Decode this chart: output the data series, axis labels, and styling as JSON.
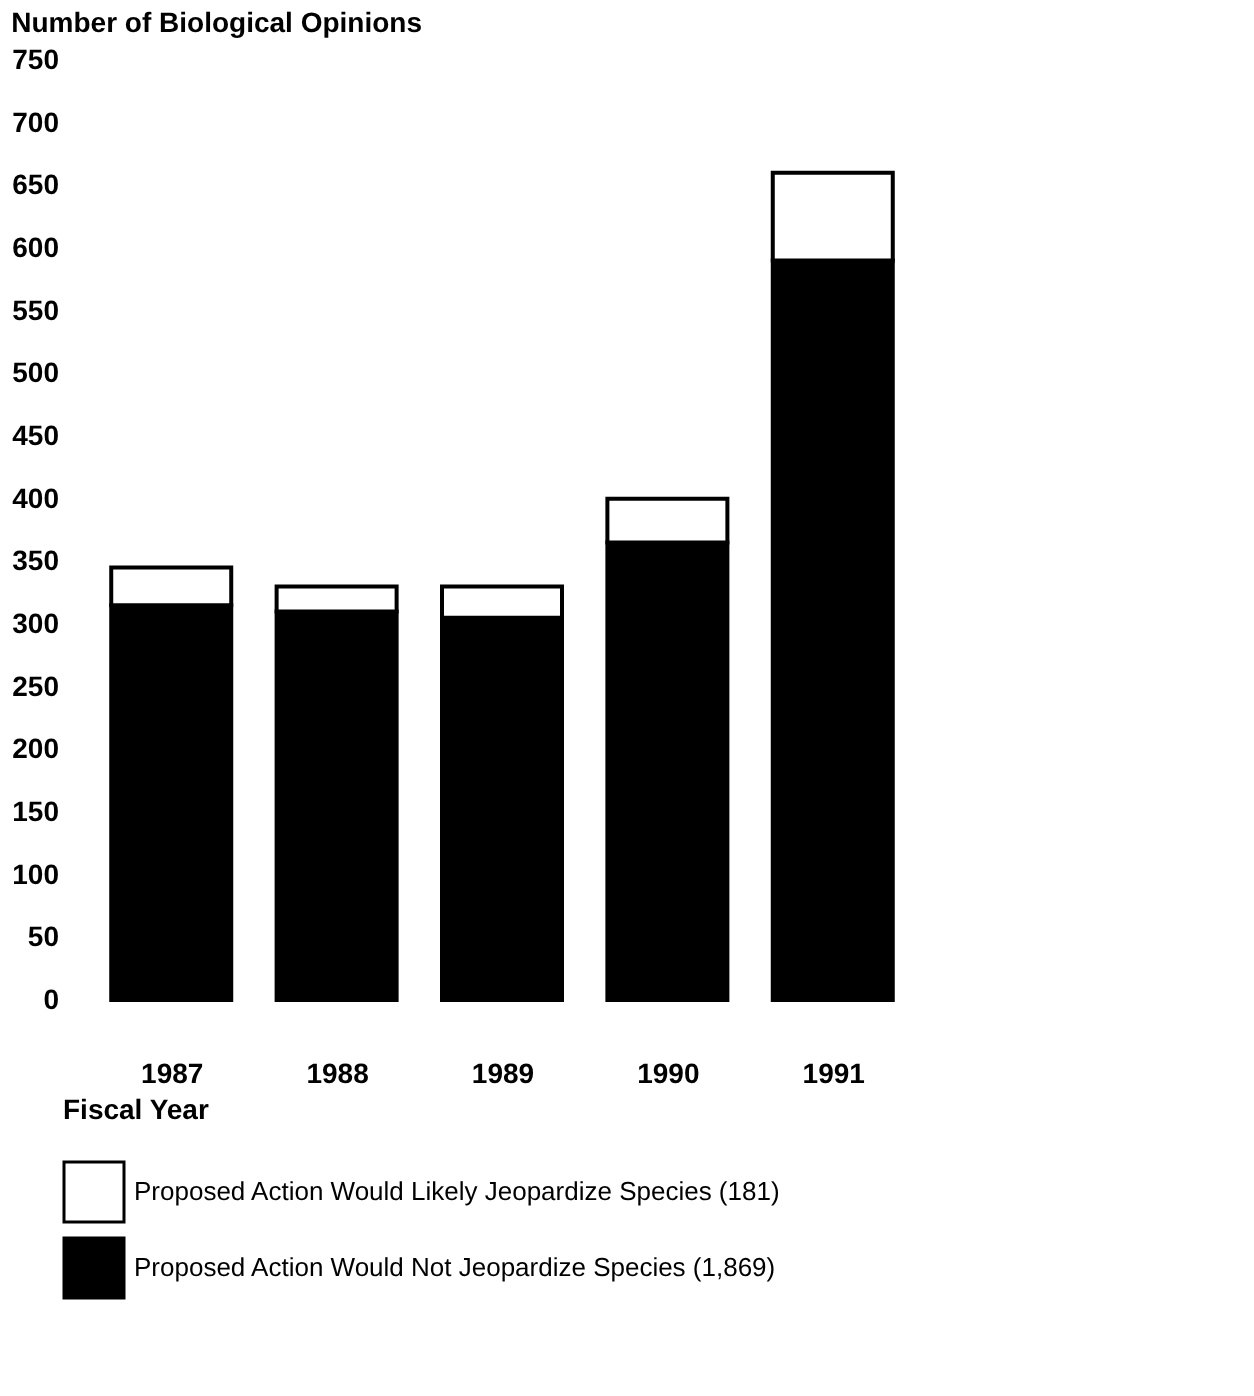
{
  "chart_data": {
    "type": "bar",
    "stacked": true,
    "title": "Number of Biological Opinions",
    "xlabel": "Fiscal Year",
    "categories": [
      "1987",
      "1988",
      "1989",
      "1990",
      "1991"
    ],
    "series": [
      {
        "name": "Proposed Action Would Not Jeopardize Species (1,869)",
        "color": "#000000",
        "values": [
          315,
          310,
          305,
          365,
          590
        ]
      },
      {
        "name": "Proposed Action Would Likely Jeopardize Species (181)",
        "color": "#ffffff",
        "values": [
          30,
          20,
          25,
          35,
          70
        ]
      }
    ],
    "ylim": [
      0,
      750
    ],
    "yticks": [
      0,
      50,
      100,
      150,
      200,
      250,
      300,
      350,
      400,
      450,
      500,
      550,
      600,
      650,
      700,
      750
    ],
    "grid": false,
    "legend": "bottom"
  }
}
